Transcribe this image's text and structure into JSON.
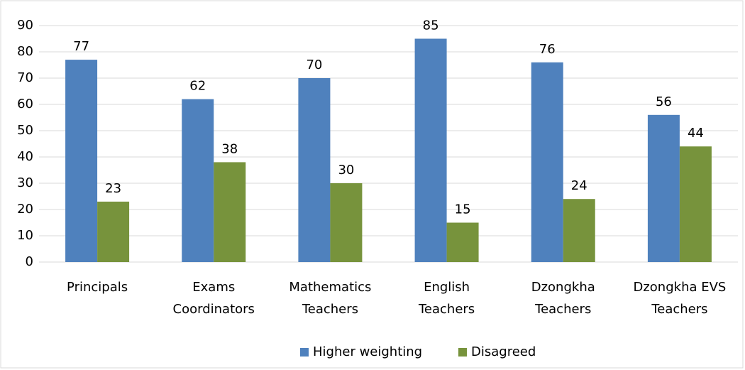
{
  "chart_data": {
    "type": "bar",
    "categories": [
      "Principals",
      "Exams Coordinators",
      "Mathematics Teachers",
      "English Teachers",
      "Dzongkha Teachers",
      "Dzongkha EVS Teachers"
    ],
    "series": [
      {
        "name": "Higher weighting",
        "color": "#4f81bd",
        "values": [
          77,
          62,
          70,
          85,
          76,
          56
        ]
      },
      {
        "name": "Disagreed",
        "color": "#77933c",
        "values": [
          23,
          38,
          30,
          15,
          24,
          44
        ]
      }
    ],
    "ylim": [
      0,
      90
    ],
    "yticks": [
      0,
      10,
      20,
      30,
      40,
      50,
      60,
      70,
      80,
      90
    ],
    "grid": true,
    "legend": "bottom"
  }
}
